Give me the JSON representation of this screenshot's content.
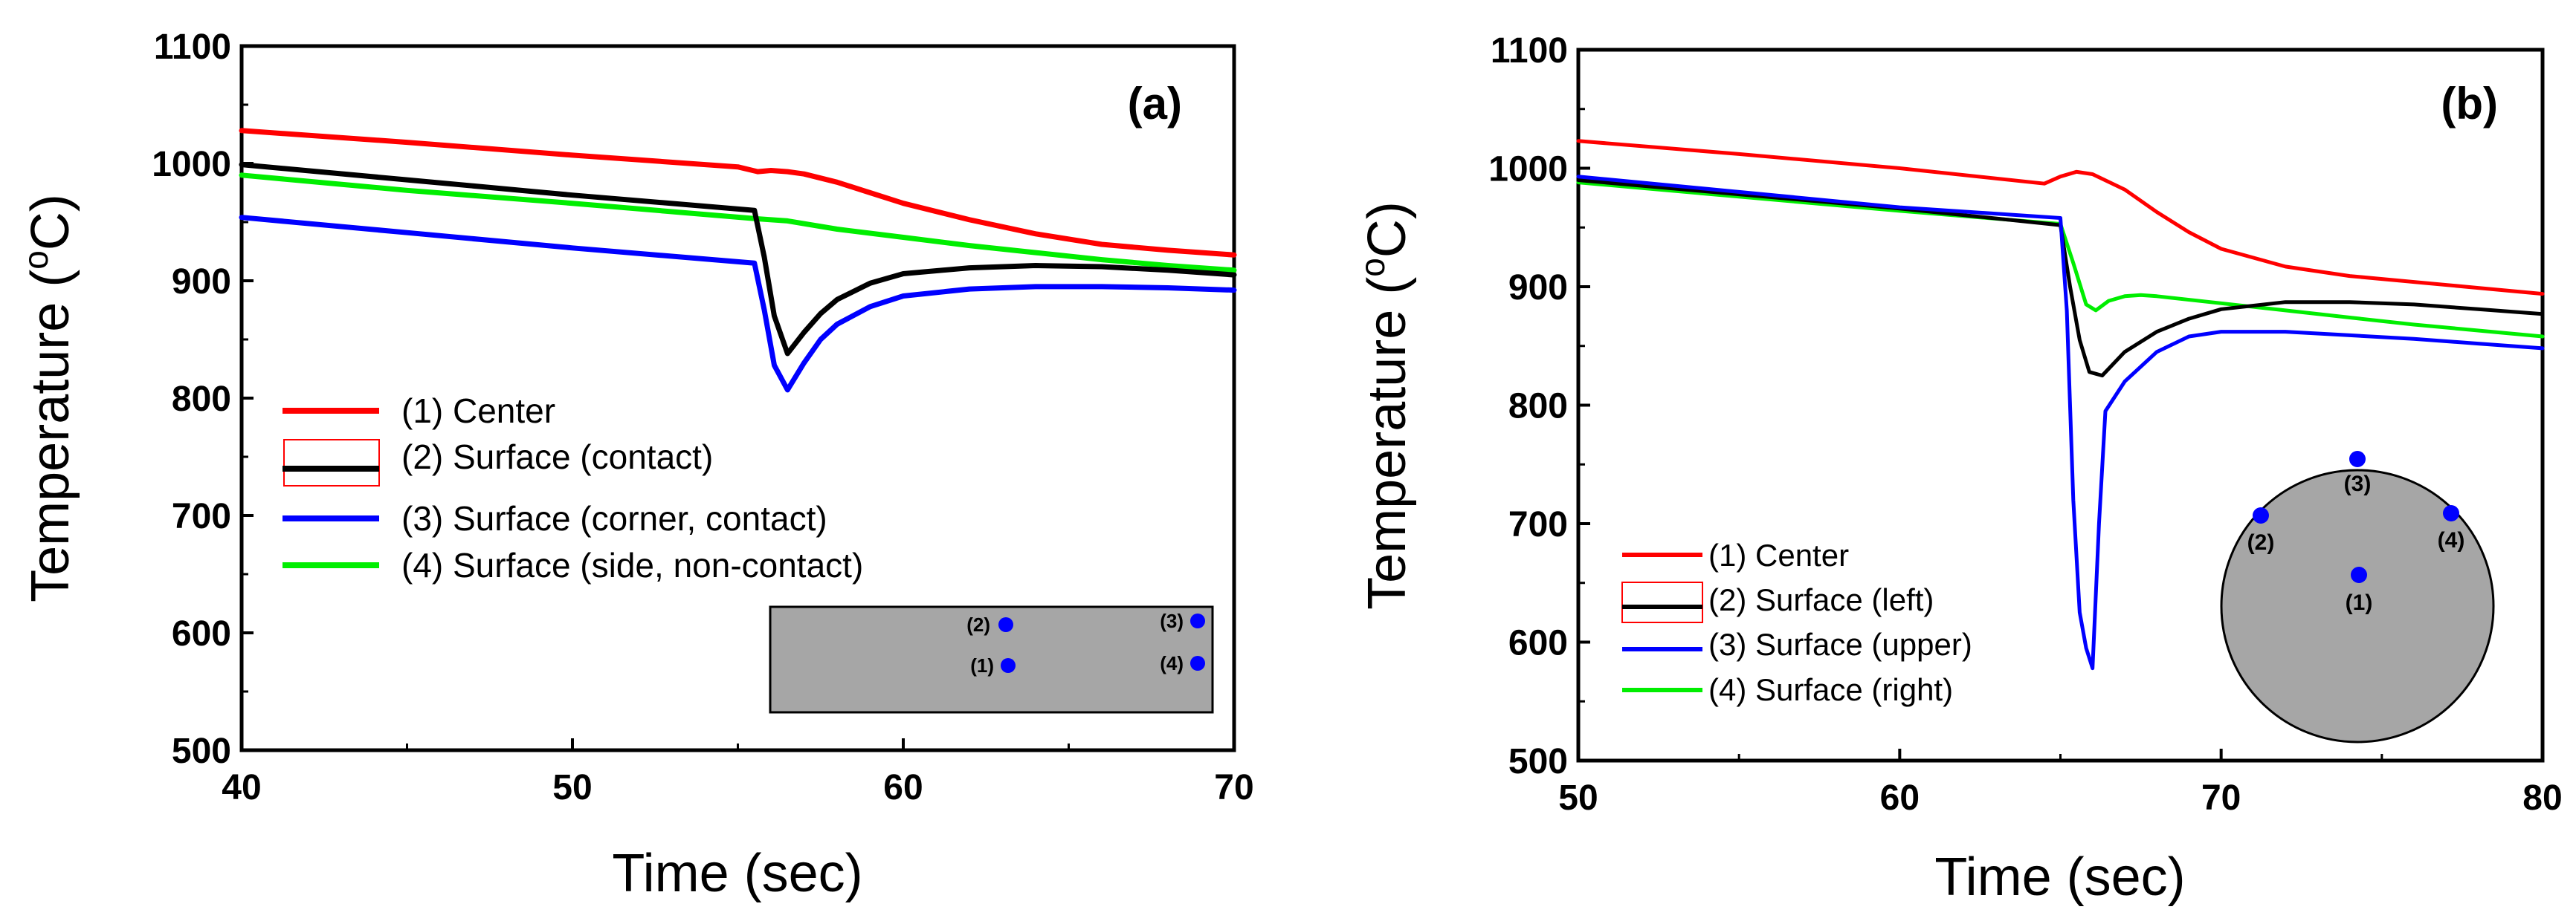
{
  "chart_data": [
    {
      "type": "line",
      "panel_label": "(a)",
      "xlabel": "Time (sec)",
      "ylabel": "Temperature (°C)",
      "ylabel_parts": {
        "base": "Temperature (",
        "superscript": "o",
        "tail": "C)"
      },
      "xlim": [
        40,
        70
      ],
      "ylim": [
        500,
        1100
      ],
      "xticks": [
        "40",
        "50",
        "60",
        "70"
      ],
      "yticks": [
        "500",
        "600",
        "700",
        "800",
        "900",
        "1000",
        "1100"
      ],
      "legend_position": "lower-left",
      "series": [
        {
          "name": "(1) Center",
          "color": "#ff0000",
          "x": [
            40,
            45,
            50,
            55,
            55.6,
            56,
            56.5,
            57,
            58,
            59,
            60,
            62,
            64,
            66,
            68,
            70
          ],
          "y": [
            1028,
            1018,
            1007,
            997,
            993,
            994,
            993,
            991,
            984,
            975,
            966,
            952,
            940,
            931,
            926,
            922
          ]
        },
        {
          "name": "(2) Surface (contact)",
          "color": "#000000",
          "x": [
            40,
            45,
            50,
            55.5,
            55.8,
            56.1,
            56.5,
            57,
            57.5,
            58,
            59,
            60,
            62,
            64,
            66,
            68,
            70
          ],
          "y": [
            999,
            986,
            973,
            960,
            920,
            870,
            838,
            856,
            872,
            884,
            898,
            906,
            911,
            913,
            912,
            909,
            905
          ]
        },
        {
          "name": "(3) Surface (corner, contact)",
          "color": "#0000ff",
          "x": [
            40,
            45,
            50,
            55.5,
            55.8,
            56.1,
            56.5,
            57,
            57.5,
            58,
            59,
            60,
            62,
            64,
            66,
            68,
            70
          ],
          "y": [
            954,
            941,
            928,
            915,
            875,
            828,
            807,
            830,
            850,
            863,
            878,
            887,
            893,
            895,
            895,
            894,
            892
          ]
        },
        {
          "name": "(4) Surface (side, non-contact)",
          "color": "#00ee00",
          "x": [
            40,
            45,
            50,
            55.5,
            56.5,
            58,
            60,
            62,
            64,
            66,
            68,
            70
          ],
          "y": [
            990,
            977,
            966,
            953,
            951,
            944,
            937,
            930,
            924,
            918,
            913,
            909
          ]
        }
      ],
      "inset": {
        "shape": "rectangle",
        "points": [
          {
            "label": "(2)",
            "color": "#0000ff"
          },
          {
            "label": "(3)",
            "color": "#0000ff"
          },
          {
            "label": "(1)",
            "color": "#0000ff"
          },
          {
            "label": "(4)",
            "color": "#0000ff"
          }
        ]
      }
    },
    {
      "type": "line",
      "panel_label": "(b)",
      "xlabel": "Time (sec)",
      "ylabel": "Temperature (°C)",
      "ylabel_parts": {
        "base": "Temperature (",
        "superscript": "o",
        "tail": "C)"
      },
      "xlim": [
        50,
        80
      ],
      "ylim": [
        500,
        1100
      ],
      "xticks": [
        "50",
        "60",
        "70",
        "80"
      ],
      "yticks": [
        "500",
        "600",
        "700",
        "800",
        "900",
        "1000",
        "1100"
      ],
      "legend_position": "lower-left",
      "series": [
        {
          "name": "(1) Center",
          "color": "#ff0000",
          "x": [
            50,
            55,
            60,
            64.5,
            65,
            65.5,
            66,
            67,
            68,
            69,
            70,
            72,
            74,
            76,
            78,
            80
          ],
          "y": [
            1023,
            1012,
            1000,
            987,
            993,
            997,
            995,
            982,
            963,
            946,
            932,
            917,
            909,
            904,
            899,
            894
          ]
        },
        {
          "name": "(2) Surface (left)",
          "color": "#000000",
          "x": [
            50,
            55,
            60,
            65,
            65.3,
            65.6,
            65.9,
            66.3,
            67,
            68,
            69,
            70,
            72,
            74,
            76,
            78,
            80
          ],
          "y": [
            990,
            978,
            966,
            952,
            900,
            855,
            828,
            825,
            845,
            862,
            873,
            881,
            887,
            887,
            885,
            881,
            877
          ]
        },
        {
          "name": "(3) Surface (upper)",
          "color": "#0000ff",
          "x": [
            50,
            55,
            60,
            65,
            65.2,
            65.4,
            65.6,
            65.8,
            66,
            66.2,
            66.4,
            67,
            68,
            69,
            70,
            72,
            74,
            76,
            78,
            80
          ],
          "y": [
            993,
            980,
            967,
            958,
            880,
            720,
            625,
            595,
            578,
            700,
            795,
            820,
            845,
            858,
            862,
            862,
            859,
            856,
            852,
            848
          ]
        },
        {
          "name": "(4) Surface (right)",
          "color": "#00ee00",
          "x": [
            50,
            55,
            60,
            65,
            65.4,
            65.8,
            66.1,
            66.5,
            67,
            67.5,
            68,
            70,
            72,
            74,
            76,
            78,
            80
          ],
          "y": [
            988,
            976,
            964,
            953,
            920,
            885,
            880,
            888,
            892,
            893,
            892,
            886,
            880,
            874,
            868,
            863,
            858
          ]
        }
      ],
      "inset": {
        "shape": "circle",
        "points": [
          {
            "label": "(3)",
            "color": "#0000ff"
          },
          {
            "label": "(2)",
            "color": "#0000ff"
          },
          {
            "label": "(4)",
            "color": "#0000ff"
          },
          {
            "label": "(1)",
            "color": "#0000ff"
          }
        ]
      }
    }
  ]
}
